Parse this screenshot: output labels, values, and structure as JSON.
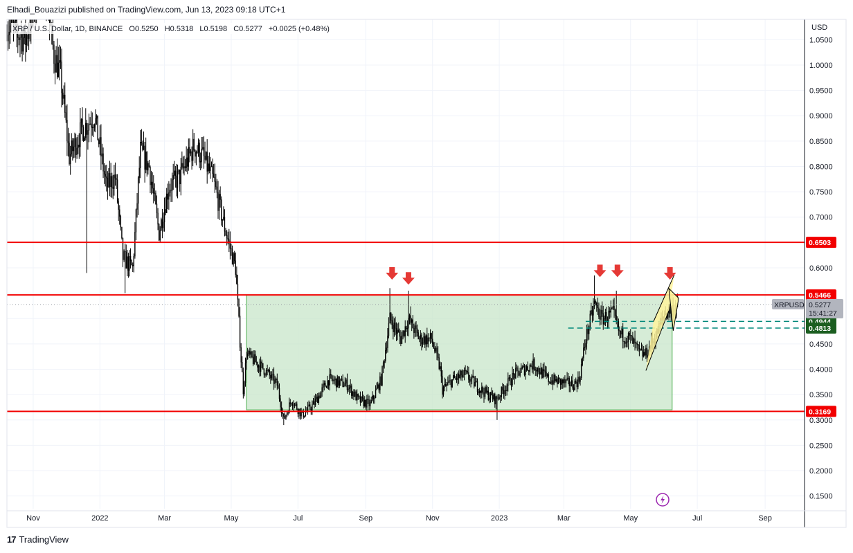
{
  "header": {
    "publisher_line": "Elhadi_Bouazizi published on TradingView.com, Jun 13, 2023 09:18 UTC+1"
  },
  "legend": {
    "symbol": "XRP / U.S. Dollar, 1D, BINANCE",
    "o_label": "O",
    "o_value": "0.5250",
    "h_label": "H",
    "h_value": "0.5318",
    "l_label": "L",
    "l_value": "0.5198",
    "c_label": "C",
    "c_value": "0.5277",
    "change": "+0.0025 (+0.48%)"
  },
  "footer": {
    "brand": "TradingView"
  },
  "colors": {
    "candle": "#000000",
    "support_resistance": "#f20000",
    "range_box_fill": "#c8e6c9",
    "range_box_border": "#4caf50",
    "dashed_level": "#00897b",
    "flag_fill": "#fff59d",
    "arrow": "#e53935",
    "current_price_tag": "#b2b5be",
    "green_tag": "#1b5e20",
    "red_tag": "#f20000"
  },
  "chart_data": {
    "type": "candlestick",
    "title": "XRP / U.S. Dollar, 1D, BINANCE",
    "currency_label": "USD",
    "ylim": [
      0.125,
      1.09
    ],
    "y_ticks": [
      "0.1500",
      "0.2000",
      "0.2500",
      "0.3000",
      "0.3500",
      "0.4000",
      "0.4500",
      "0.5000",
      "0.5500",
      "0.6000",
      "0.6500",
      "0.7000",
      "0.7500",
      "0.8000",
      "0.8500",
      "0.9000",
      "0.9500",
      "1.0000",
      "1.0500"
    ],
    "x_ticks": [
      {
        "label": "Nov",
        "date": "2021-11-01"
      },
      {
        "label": "2022",
        "date": "2022-01-01"
      },
      {
        "label": "Mar",
        "date": "2022-03-01"
      },
      {
        "label": "May",
        "date": "2022-05-01"
      },
      {
        "label": "Jul",
        "date": "2022-07-01"
      },
      {
        "label": "Sep",
        "date": "2022-09-01"
      },
      {
        "label": "Nov",
        "date": "2022-11-01"
      },
      {
        "label": "2023",
        "date": "2023-01-01"
      },
      {
        "label": "Mar",
        "date": "2023-03-01"
      },
      {
        "label": "May",
        "date": "2023-05-01"
      },
      {
        "label": "Jul",
        "date": "2023-07-01"
      },
      {
        "label": "Sep",
        "date": "2023-09-01"
      }
    ],
    "xlim": [
      "2021-10-08",
      "2023-10-07"
    ],
    "price_path": [
      [
        "2021-10-08",
        1.08
      ],
      [
        "2021-10-25",
        1.05
      ],
      [
        "2021-11-10",
        1.18
      ],
      [
        "2021-11-20",
        1.02
      ],
      [
        "2021-11-26",
        0.98
      ],
      [
        "2021-12-04",
        0.82
      ],
      [
        "2021-12-15",
        0.87
      ],
      [
        "2021-12-27",
        0.9
      ],
      [
        "2022-01-07",
        0.76
      ],
      [
        "2022-01-15",
        0.78
      ],
      [
        "2022-01-22",
        0.62
      ],
      [
        "2022-01-31",
        0.6
      ],
      [
        "2022-02-07",
        0.83
      ],
      [
        "2022-02-15",
        0.8
      ],
      [
        "2022-02-24",
        0.67
      ],
      [
        "2022-03-05",
        0.76
      ],
      [
        "2022-03-15",
        0.78
      ],
      [
        "2022-03-28",
        0.84
      ],
      [
        "2022-04-05",
        0.82
      ],
      [
        "2022-04-15",
        0.77
      ],
      [
        "2022-04-25",
        0.68
      ],
      [
        "2022-05-05",
        0.6
      ],
      [
        "2022-05-10",
        0.42
      ],
      [
        "2022-05-12",
        0.36
      ],
      [
        "2022-05-15",
        0.43
      ],
      [
        "2022-05-31",
        0.4
      ],
      [
        "2022-06-12",
        0.37
      ],
      [
        "2022-06-18",
        0.3
      ],
      [
        "2022-06-25",
        0.34
      ],
      [
        "2022-07-05",
        0.31
      ],
      [
        "2022-07-15",
        0.33
      ],
      [
        "2022-07-29",
        0.38
      ],
      [
        "2022-08-15",
        0.37
      ],
      [
        "2022-08-25",
        0.34
      ],
      [
        "2022-09-05",
        0.33
      ],
      [
        "2022-09-15",
        0.38
      ],
      [
        "2022-09-23",
        0.5
      ],
      [
        "2022-10-03",
        0.46
      ],
      [
        "2022-10-10",
        0.5
      ],
      [
        "2022-10-20",
        0.46
      ],
      [
        "2022-10-31",
        0.46
      ],
      [
        "2022-11-08",
        0.4
      ],
      [
        "2022-11-10",
        0.36
      ],
      [
        "2022-11-20",
        0.38
      ],
      [
        "2022-12-01",
        0.39
      ],
      [
        "2022-12-15",
        0.36
      ],
      [
        "2022-12-29",
        0.34
      ],
      [
        "2023-01-15",
        0.39
      ],
      [
        "2023-02-01",
        0.41
      ],
      [
        "2023-02-15",
        0.38
      ],
      [
        "2023-03-10",
        0.37
      ],
      [
        "2023-03-15",
        0.38
      ],
      [
        "2023-03-21",
        0.46
      ],
      [
        "2023-03-29",
        0.53
      ],
      [
        "2023-04-05",
        0.5
      ],
      [
        "2023-04-15",
        0.51
      ],
      [
        "2023-04-21",
        0.47
      ],
      [
        "2023-05-01",
        0.46
      ],
      [
        "2023-05-10",
        0.43
      ],
      [
        "2023-05-15",
        0.43
      ],
      [
        "2023-05-25",
        0.47
      ],
      [
        "2023-06-01",
        0.51
      ],
      [
        "2023-06-08",
        0.52
      ],
      [
        "2023-06-13",
        0.5277
      ]
    ],
    "spikes": [
      {
        "date": "2021-12-20",
        "low": 0.59
      },
      {
        "date": "2022-01-24",
        "low": 0.55
      },
      {
        "date": "2022-06-18",
        "low": 0.29
      },
      {
        "date": "2022-09-23",
        "high": 0.56
      },
      {
        "date": "2022-10-10",
        "high": 0.555
      },
      {
        "date": "2022-12-30",
        "low": 0.3
      },
      {
        "date": "2023-03-29",
        "high": 0.585
      },
      {
        "date": "2023-04-18",
        "high": 0.555
      }
    ],
    "levels": [
      {
        "price": 0.6503,
        "label": "0.6503",
        "style": "solid",
        "color": "#f20000"
      },
      {
        "price": 0.5466,
        "label": "0.5466",
        "style": "solid",
        "color": "#f20000"
      },
      {
        "price": 0.3169,
        "label": "0.3169",
        "style": "solid",
        "color": "#f20000"
      },
      {
        "price": 0.4944,
        "label": "0.4944",
        "style": "dashed",
        "color": "#00897b",
        "start": "2023-03-21"
      },
      {
        "price": 0.4813,
        "label": "0.4813",
        "style": "dashed",
        "color": "#00897b",
        "start": "2023-03-05"
      }
    ],
    "current_price": {
      "value": 0.5277,
      "ticker": "XRPUSD",
      "price_label": "0.5277",
      "countdown": "15:41:27"
    },
    "range_box": {
      "x0": "2022-05-15",
      "x1": "2023-06-08",
      "y_top": 0.5466,
      "y_bottom": 0.32
    },
    "flag_channel": {
      "top_line": [
        [
          "2023-05-22",
          0.4944
        ],
        [
          "2023-06-10",
          0.5866
        ]
      ],
      "bottom_line": [
        [
          "2023-05-15",
          0.3974
        ],
        [
          "2023-06-05",
          0.5157
        ]
      ],
      "pennant": [
        [
          "2023-06-05",
          0.5594
        ],
        [
          "2023-06-14",
          0.54
        ],
        [
          "2023-06-09",
          0.476
        ]
      ]
    },
    "arrows": [
      {
        "date": "2022-09-25",
        "price": 0.585
      },
      {
        "date": "2022-10-10",
        "price": 0.575
      },
      {
        "date": "2023-04-03",
        "price": 0.59
      },
      {
        "date": "2023-04-19",
        "price": 0.59
      },
      {
        "date": "2023-06-06",
        "price": 0.585
      }
    ],
    "grid": true
  }
}
